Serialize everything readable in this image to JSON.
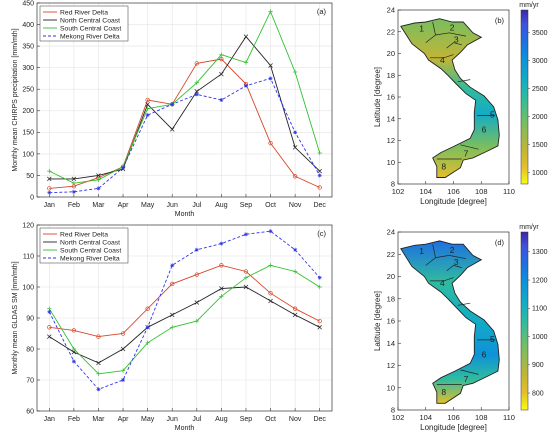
{
  "chart_data": [
    {
      "type": "line",
      "panel_label": "(a)",
      "xlabel": "Month",
      "ylabel": "Monthly mean CHIRPS precipitation [mm/mth]",
      "categories": [
        "Jan",
        "Feb",
        "Mar",
        "Apr",
        "May",
        "Jun",
        "Jul",
        "Aug",
        "Sep",
        "Oct",
        "Nov",
        "Dec"
      ],
      "ylim": [
        0,
        450
      ],
      "yticks": [
        "0",
        "50",
        "100",
        "150",
        "200",
        "250",
        "300",
        "350",
        "400",
        "450"
      ],
      "grid": true,
      "legend_position": "top-left",
      "series": [
        {
          "name": "Red River Delta",
          "color": "#d9462b",
          "marker": "circle",
          "dash": "solid",
          "values": [
            20,
            25,
            45,
            70,
            225,
            215,
            310,
            320,
            262,
            125,
            48,
            22
          ]
        },
        {
          "name": "North Central Coast",
          "color": "#222222",
          "marker": "x",
          "dash": "solid",
          "values": [
            42,
            42,
            50,
            65,
            215,
            157,
            245,
            285,
            372,
            305,
            115,
            60
          ]
        },
        {
          "name": "South Central Coast",
          "color": "#30c02e",
          "marker": "plus",
          "dash": "solid",
          "values": [
            60,
            32,
            40,
            70,
            205,
            215,
            265,
            330,
            312,
            430,
            290,
            102
          ]
        },
        {
          "name": "Mekong River Delta",
          "color": "#2d33e6",
          "marker": "star",
          "dash": "dashed",
          "values": [
            10,
            12,
            20,
            68,
            190,
            215,
            238,
            225,
            258,
            275,
            150,
            50
          ]
        }
      ]
    },
    {
      "type": "line",
      "panel_label": "(c)",
      "xlabel": "Month",
      "ylabel": "Monthly mean GLDAS SM [mm/mth]",
      "categories": [
        "Jan",
        "Feb",
        "Mar",
        "Apr",
        "May",
        "Jun",
        "Jul",
        "Aug",
        "Sep",
        "Oct",
        "Nov",
        "Dec"
      ],
      "ylim": [
        60,
        120
      ],
      "yticks": [
        "60",
        "70",
        "80",
        "90",
        "100",
        "110",
        "120"
      ],
      "grid": true,
      "legend_position": "top-left",
      "series": [
        {
          "name": "Red River Delta",
          "color": "#d9462b",
          "marker": "circle",
          "dash": "solid",
          "values": [
            87,
            86,
            84,
            85,
            93,
            101,
            104,
            107,
            105,
            98,
            93,
            89
          ]
        },
        {
          "name": "North Central Coast",
          "color": "#222222",
          "marker": "x",
          "dash": "solid",
          "values": [
            84,
            79,
            75.5,
            80,
            87,
            91,
            95,
            99.5,
            100,
            95.5,
            91,
            87
          ]
        },
        {
          "name": "South Central Coast",
          "color": "#30c02e",
          "marker": "plus",
          "dash": "solid",
          "values": [
            93,
            80,
            72,
            73,
            82,
            87,
            89,
            97,
            103,
            107,
            105,
            100
          ]
        },
        {
          "name": "Mekong River Delta",
          "color": "#2d33e6",
          "marker": "star",
          "dash": "dashed",
          "values": [
            92,
            76,
            67,
            70,
            87,
            107,
            112,
            114,
            117,
            118,
            112,
            103
          ]
        }
      ]
    },
    {
      "type": "heatmap",
      "panel_label": "(b)",
      "xlabel": "Longitude [degree]",
      "ylabel": "Latitude [degree]",
      "xlim": [
        102,
        110
      ],
      "ylim": [
        8,
        24
      ],
      "xticks": [
        "102",
        "104",
        "106",
        "108",
        "110"
      ],
      "yticks": [
        "8",
        "10",
        "12",
        "14",
        "16",
        "18",
        "20",
        "22",
        "24"
      ],
      "colorbar_unit": "mm/yr",
      "colorbar_ticks": [
        "1000",
        "1500",
        "2000",
        "2500",
        "3000",
        "3500"
      ],
      "colorbar_range": [
        800,
        3900
      ],
      "region_labels": [
        "1",
        "2",
        "3",
        "4",
        "5",
        "6",
        "7",
        "8"
      ]
    },
    {
      "type": "heatmap",
      "panel_label": "(d)",
      "xlabel": "Longitude [degree]",
      "ylabel": "Latitude [degree]",
      "xlim": [
        102,
        110
      ],
      "ylim": [
        8,
        24
      ],
      "xticks": [
        "102",
        "104",
        "106",
        "108",
        "110"
      ],
      "yticks": [
        "8",
        "10",
        "12",
        "14",
        "16",
        "18",
        "20",
        "22",
        "24"
      ],
      "colorbar_unit": "mm/yr",
      "colorbar_ticks": [
        "800",
        "900",
        "1000",
        "1100",
        "1200",
        "1300"
      ],
      "colorbar_range": [
        740,
        1370
      ],
      "region_labels": [
        "1",
        "2",
        "3",
        "4",
        "5",
        "6",
        "7",
        "8"
      ]
    }
  ]
}
